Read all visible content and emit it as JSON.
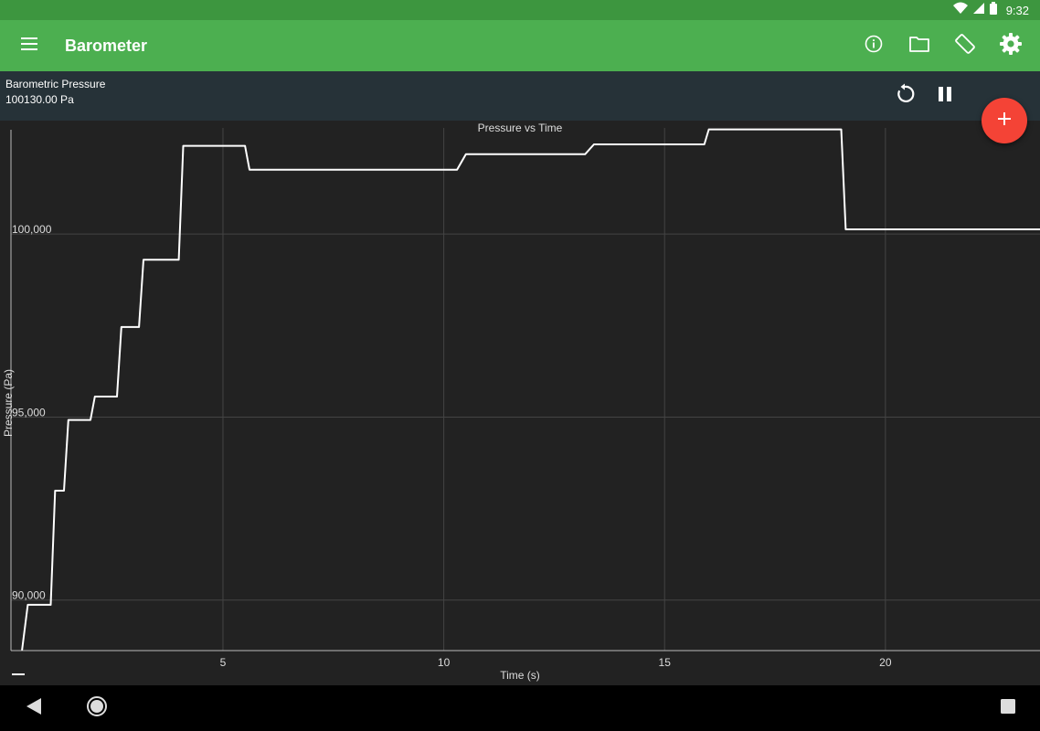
{
  "status_bar": {
    "time": "9:32",
    "icons": [
      "wifi-icon",
      "cell-signal-icon",
      "battery-icon"
    ]
  },
  "app_bar": {
    "title": "Barometer",
    "color": "#4caf50",
    "actions": [
      "info-icon",
      "folder-icon",
      "screen-rotation-icon",
      "settings-icon"
    ]
  },
  "info_bar": {
    "sensor_name": "Barometric Pressure",
    "sensor_value": "100130.00 Pa",
    "actions": [
      "reset-icon",
      "pause-icon"
    ]
  },
  "fab": {
    "icon": "plus-icon",
    "color": "#f44336"
  },
  "chart_data": {
    "type": "line",
    "title": "Pressure vs Time",
    "xlabel": "Time (s)",
    "ylabel": "Pressure (Pa)",
    "xlim": [
      0.2,
      23.5
    ],
    "ylim": [
      88620,
      102900
    ],
    "xticks": [
      {
        "value": 5,
        "label": "5"
      },
      {
        "value": 10,
        "label": "10"
      },
      {
        "value": 15,
        "label": "15"
      },
      {
        "value": 20,
        "label": "20"
      }
    ],
    "yticks": [
      {
        "value": 90000,
        "label": "90,000"
      },
      {
        "value": 95000,
        "label": "95,000"
      },
      {
        "value": 100000,
        "label": "100,000"
      }
    ],
    "grid": true,
    "line_color": "#ffffff",
    "series": [
      {
        "values": [
          [
            0.45,
            88630
          ],
          [
            0.58,
            89870
          ],
          [
            1.1,
            89870
          ],
          [
            1.2,
            92990
          ],
          [
            1.4,
            92990
          ],
          [
            1.5,
            94920
          ],
          [
            2.0,
            94920
          ],
          [
            2.1,
            95560
          ],
          [
            2.6,
            95560
          ],
          [
            2.7,
            97460
          ],
          [
            3.1,
            97460
          ],
          [
            3.2,
            99300
          ],
          [
            4.0,
            99300
          ],
          [
            4.1,
            102410
          ],
          [
            5.5,
            102410
          ],
          [
            5.6,
            101760
          ],
          [
            10.3,
            101760
          ],
          [
            10.5,
            102180
          ],
          [
            13.2,
            102180
          ],
          [
            13.4,
            102450
          ],
          [
            15.9,
            102450
          ],
          [
            16.0,
            102860
          ],
          [
            19.0,
            102860
          ],
          [
            19.1,
            100130
          ],
          [
            23.5,
            100130
          ]
        ]
      }
    ]
  },
  "nav_bar": {
    "icons": [
      "back-icon",
      "home-icon",
      "recents-icon"
    ]
  }
}
